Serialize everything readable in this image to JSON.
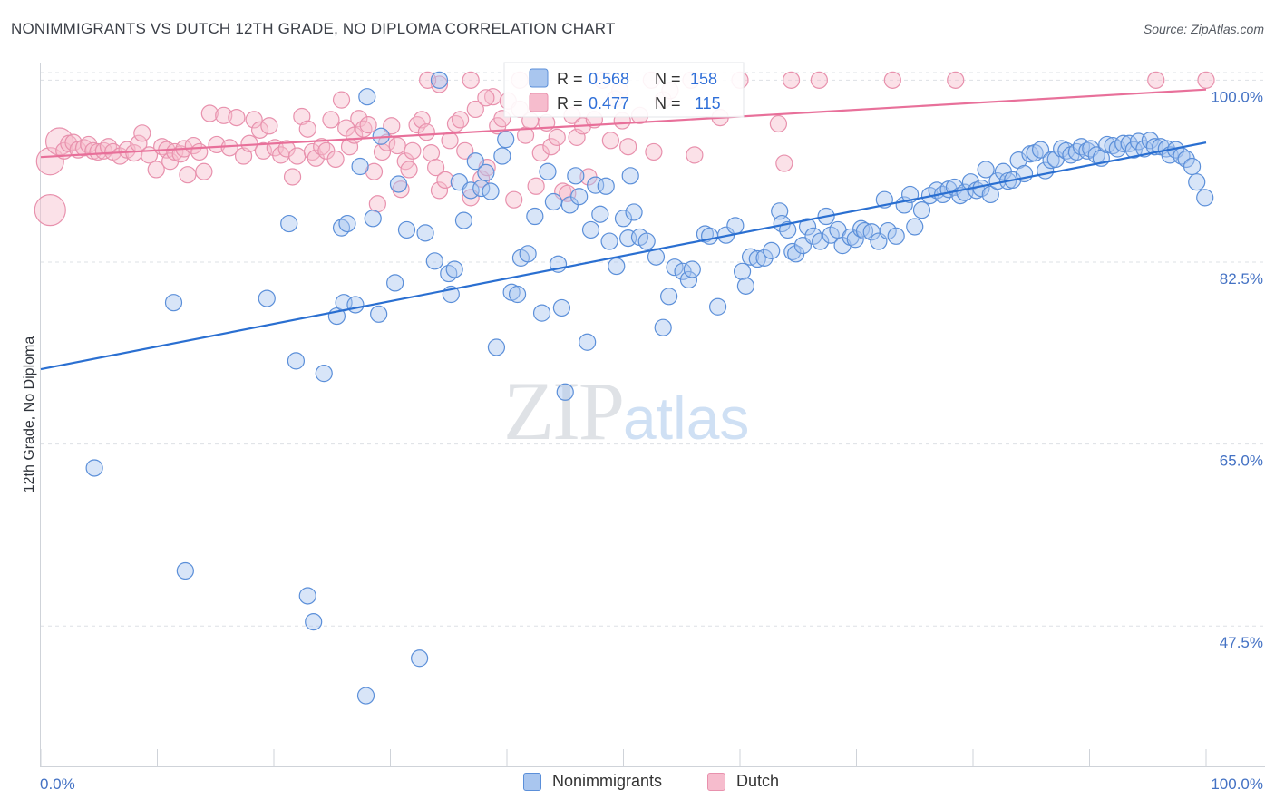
{
  "header": {
    "title": "NONIMMIGRANTS VS DUTCH 12TH GRADE, NO DIPLOMA CORRELATION CHART",
    "source": "Source: ZipAtlas.com"
  },
  "watermark": {
    "zip": "ZIP",
    "atlas": "atlas"
  },
  "colors": {
    "blue": "#5b8fd9",
    "blue_fill": "#a9c6ef",
    "blue_line": "#2a6fd1",
    "pink": "#e891ad",
    "pink_fill": "#f6bccd",
    "pink_line": "#e8709a",
    "tick_text": "#4472c4",
    "grid": "#dde0e5"
  },
  "legend": {
    "rows": [
      {
        "r_label": "R = ",
        "r_value": "0.568",
        "n_label": "N = ",
        "n_value": "158"
      },
      {
        "r_label": "R = ",
        "r_value": "0.477",
        "n_label": "N = ",
        "n_value": "115"
      }
    ]
  },
  "bottom_legend": {
    "items": [
      "Nonimmigrants",
      "Dutch"
    ]
  },
  "chart_data": {
    "type": "scatter",
    "title": "NONIMMIGRANTS VS DUTCH 12TH GRADE, NO DIPLOMA CORRELATION CHART",
    "xlabel": "",
    "ylabel": "12th Grade, No Diploma",
    "xlim": [
      0,
      100
    ],
    "ylim": [
      34,
      101.6
    ],
    "x_tick_labels": [
      "0.0%",
      "100.0%"
    ],
    "y_ticks": [
      100.0,
      82.5,
      65.0,
      47.5
    ],
    "y_tick_labels": [
      "100.0%",
      "82.5%",
      "65.0%",
      "47.5%"
    ],
    "grid": true,
    "legend_placement": "top-center",
    "series": [
      {
        "name": "Nonimmigrants",
        "color": "#5b8fd9",
        "r": 0.568,
        "n": 158,
        "trend": [
          [
            0,
            72.2
          ],
          [
            100,
            94.0
          ]
        ],
        "points": [
          [
            4.6,
            62.7
          ],
          [
            11.4,
            78.6
          ],
          [
            12.4,
            52.8
          ],
          [
            19.4,
            79.0
          ],
          [
            21.3,
            86.2
          ],
          [
            21.9,
            73.0
          ],
          [
            22.9,
            50.4
          ],
          [
            23.4,
            47.9
          ],
          [
            24.3,
            71.8
          ],
          [
            25.4,
            77.3
          ],
          [
            25.8,
            85.8
          ],
          [
            26.0,
            78.6
          ],
          [
            26.3,
            86.2
          ],
          [
            27.0,
            78.4
          ],
          [
            27.4,
            91.7
          ],
          [
            28.0,
            98.4
          ],
          [
            28.5,
            86.7
          ],
          [
            29.0,
            77.5
          ],
          [
            29.2,
            94.6
          ],
          [
            30.4,
            80.5
          ],
          [
            30.7,
            90.0
          ],
          [
            31.4,
            85.6
          ],
          [
            32.5,
            44.4
          ],
          [
            33.0,
            85.3
          ],
          [
            33.8,
            82.6
          ],
          [
            34.2,
            100.0
          ],
          [
            35.0,
            81.4
          ],
          [
            35.2,
            79.4
          ],
          [
            35.5,
            81.8
          ],
          [
            35.9,
            90.2
          ],
          [
            36.3,
            86.5
          ],
          [
            36.9,
            89.4
          ],
          [
            37.3,
            92.2
          ],
          [
            37.8,
            89.6
          ],
          [
            38.2,
            91.1
          ],
          [
            38.6,
            89.3
          ],
          [
            39.1,
            74.3
          ],
          [
            39.6,
            92.7
          ],
          [
            39.9,
            94.3
          ],
          [
            40.4,
            79.6
          ],
          [
            40.9,
            79.4
          ],
          [
            41.2,
            82.9
          ],
          [
            41.8,
            83.3
          ],
          [
            42.4,
            86.9
          ],
          [
            43.0,
            77.6
          ],
          [
            43.5,
            91.2
          ],
          [
            44.0,
            88.3
          ],
          [
            44.4,
            82.3
          ],
          [
            44.7,
            78.1
          ],
          [
            45.0,
            70.0
          ],
          [
            45.4,
            88.0
          ],
          [
            45.9,
            90.8
          ],
          [
            46.2,
            88.8
          ],
          [
            46.9,
            74.8
          ],
          [
            47.2,
            85.6
          ],
          [
            47.6,
            89.9
          ],
          [
            48.0,
            87.1
          ],
          [
            48.5,
            89.8
          ],
          [
            48.8,
            84.5
          ],
          [
            49.4,
            82.1
          ],
          [
            50.0,
            86.7
          ],
          [
            50.4,
            84.8
          ],
          [
            50.6,
            90.8
          ],
          [
            50.9,
            87.3
          ],
          [
            51.4,
            84.9
          ],
          [
            52.0,
            84.5
          ],
          [
            52.8,
            83.0
          ],
          [
            53.4,
            76.2
          ],
          [
            53.9,
            79.2
          ],
          [
            54.4,
            82.0
          ],
          [
            55.1,
            81.6
          ],
          [
            55.6,
            80.8
          ],
          [
            55.9,
            81.8
          ],
          [
            57.0,
            85.2
          ],
          [
            57.4,
            85.0
          ],
          [
            58.1,
            78.2
          ],
          [
            58.8,
            85.1
          ],
          [
            59.6,
            86.0
          ],
          [
            60.2,
            81.6
          ],
          [
            60.5,
            80.2
          ],
          [
            60.9,
            83.0
          ],
          [
            61.5,
            82.8
          ],
          [
            62.1,
            82.9
          ],
          [
            62.7,
            83.6
          ],
          [
            63.4,
            87.4
          ],
          [
            63.6,
            86.2
          ],
          [
            64.1,
            85.6
          ],
          [
            64.5,
            83.5
          ],
          [
            64.8,
            83.3
          ],
          [
            65.4,
            84.1
          ],
          [
            65.8,
            85.9
          ],
          [
            66.3,
            85.0
          ],
          [
            66.9,
            84.5
          ],
          [
            67.4,
            86.9
          ],
          [
            67.8,
            85.1
          ],
          [
            68.4,
            85.6
          ],
          [
            68.8,
            84.1
          ],
          [
            69.5,
            84.9
          ],
          [
            69.9,
            84.7
          ],
          [
            70.4,
            85.7
          ],
          [
            70.7,
            85.5
          ],
          [
            71.3,
            85.4
          ],
          [
            71.9,
            84.5
          ],
          [
            72.4,
            88.5
          ],
          [
            72.7,
            85.5
          ],
          [
            73.4,
            85.0
          ],
          [
            74.1,
            88.0
          ],
          [
            74.6,
            89.0
          ],
          [
            75.0,
            85.9
          ],
          [
            75.6,
            87.5
          ],
          [
            76.3,
            88.9
          ],
          [
            76.9,
            89.4
          ],
          [
            77.4,
            89.0
          ],
          [
            77.9,
            89.5
          ],
          [
            78.4,
            89.7
          ],
          [
            78.9,
            88.9
          ],
          [
            79.3,
            89.2
          ],
          [
            79.8,
            90.2
          ],
          [
            80.3,
            89.4
          ],
          [
            80.7,
            89.6
          ],
          [
            81.1,
            91.4
          ],
          [
            81.5,
            89.0
          ],
          [
            82.1,
            90.3
          ],
          [
            82.6,
            91.2
          ],
          [
            83.0,
            90.3
          ],
          [
            83.4,
            90.4
          ],
          [
            83.9,
            92.3
          ],
          [
            84.4,
            91.0
          ],
          [
            84.9,
            92.9
          ],
          [
            85.3,
            93.0
          ],
          [
            85.8,
            93.3
          ],
          [
            86.2,
            91.3
          ],
          [
            86.7,
            92.3
          ],
          [
            87.1,
            92.4
          ],
          [
            87.6,
            93.4
          ],
          [
            88.0,
            93.2
          ],
          [
            88.4,
            92.8
          ],
          [
            88.9,
            93.1
          ],
          [
            89.3,
            93.6
          ],
          [
            89.8,
            93.2
          ],
          [
            90.1,
            93.4
          ],
          [
            90.6,
            92.8
          ],
          [
            91.0,
            92.5
          ],
          [
            91.5,
            93.8
          ],
          [
            92.0,
            93.7
          ],
          [
            92.4,
            93.4
          ],
          [
            92.9,
            93.9
          ],
          [
            93.4,
            93.9
          ],
          [
            93.8,
            93.3
          ],
          [
            94.2,
            94.1
          ],
          [
            94.7,
            93.4
          ],
          [
            95.2,
            94.2
          ],
          [
            95.6,
            93.6
          ],
          [
            96.1,
            93.6
          ],
          [
            96.6,
            93.4
          ],
          [
            96.9,
            92.8
          ],
          [
            97.4,
            93.3
          ],
          [
            97.9,
            92.7
          ],
          [
            98.3,
            92.4
          ],
          [
            98.8,
            91.7
          ],
          [
            99.2,
            90.2
          ],
          [
            99.9,
            88.7
          ],
          [
            27.9,
            40.8
          ]
        ]
      },
      {
        "name": "Dutch",
        "color": "#e891ad",
        "r": 0.477,
        "n": 115,
        "trend": [
          [
            0,
            92.6
          ],
          [
            100,
            99.1
          ]
        ],
        "points": [
          [
            0.8,
            87.5
          ],
          [
            0.8,
            92.2
          ],
          [
            1.6,
            94.1
          ],
          [
            2.0,
            93.2
          ],
          [
            2.4,
            93.9
          ],
          [
            2.8,
            94.0
          ],
          [
            3.2,
            93.3
          ],
          [
            3.7,
            93.5
          ],
          [
            4.1,
            93.8
          ],
          [
            4.5,
            93.2
          ],
          [
            4.9,
            93.1
          ],
          [
            5.4,
            93.2
          ],
          [
            5.8,
            93.6
          ],
          [
            6.2,
            93.1
          ],
          [
            6.8,
            92.7
          ],
          [
            7.4,
            93.3
          ],
          [
            8.0,
            93.0
          ],
          [
            8.4,
            93.9
          ],
          [
            8.7,
            94.9
          ],
          [
            9.3,
            92.8
          ],
          [
            9.9,
            91.4
          ],
          [
            10.4,
            93.6
          ],
          [
            10.8,
            93.3
          ],
          [
            11.1,
            92.2
          ],
          [
            11.5,
            93.1
          ],
          [
            12.0,
            92.9
          ],
          [
            12.3,
            93.4
          ],
          [
            12.6,
            90.9
          ],
          [
            13.1,
            93.7
          ],
          [
            13.6,
            93.1
          ],
          [
            14.0,
            91.2
          ],
          [
            14.5,
            96.8
          ],
          [
            15.1,
            93.8
          ],
          [
            15.7,
            96.6
          ],
          [
            16.2,
            93.5
          ],
          [
            16.8,
            96.4
          ],
          [
            17.4,
            92.7
          ],
          [
            17.9,
            93.9
          ],
          [
            18.3,
            96.2
          ],
          [
            18.8,
            95.2
          ],
          [
            19.1,
            93.2
          ],
          [
            19.6,
            95.6
          ],
          [
            20.1,
            93.5
          ],
          [
            20.6,
            92.8
          ],
          [
            21.1,
            93.4
          ],
          [
            21.6,
            90.7
          ],
          [
            22.0,
            92.7
          ],
          [
            22.4,
            96.5
          ],
          [
            22.9,
            95.3
          ],
          [
            23.3,
            93.1
          ],
          [
            23.6,
            92.5
          ],
          [
            24.1,
            93.6
          ],
          [
            24.5,
            93.2
          ],
          [
            24.9,
            96.2
          ],
          [
            25.3,
            92.4
          ],
          [
            25.8,
            98.1
          ],
          [
            26.2,
            95.4
          ],
          [
            26.5,
            93.6
          ],
          [
            26.9,
            94.7
          ],
          [
            27.3,
            96.3
          ],
          [
            27.7,
            95.3
          ],
          [
            28.1,
            95.7
          ],
          [
            28.6,
            91.2
          ],
          [
            28.9,
            88.1
          ],
          [
            29.3,
            93.1
          ],
          [
            29.7,
            94.0
          ],
          [
            30.1,
            95.6
          ],
          [
            30.6,
            93.7
          ],
          [
            30.9,
            89.5
          ],
          [
            31.3,
            92.2
          ],
          [
            31.6,
            91.4
          ],
          [
            31.9,
            93.2
          ],
          [
            32.3,
            95.7
          ],
          [
            32.7,
            96.2
          ],
          [
            33.1,
            95.0
          ],
          [
            33.5,
            93.0
          ],
          [
            33.9,
            91.6
          ],
          [
            34.2,
            89.4
          ],
          [
            34.7,
            90.4
          ],
          [
            35.1,
            94.2
          ],
          [
            35.6,
            95.8
          ],
          [
            36.0,
            96.2
          ],
          [
            36.4,
            93.2
          ],
          [
            36.9,
            88.7
          ],
          [
            37.3,
            97.2
          ],
          [
            37.8,
            90.5
          ],
          [
            38.3,
            91.6
          ],
          [
            38.8,
            98.4
          ],
          [
            39.2,
            95.6
          ],
          [
            39.6,
            96.3
          ],
          [
            40.1,
            98.0
          ],
          [
            40.6,
            88.5
          ],
          [
            41.1,
            97.2
          ],
          [
            41.6,
            94.7
          ],
          [
            42.0,
            96.1
          ],
          [
            42.5,
            89.8
          ],
          [
            42.9,
            93.0
          ],
          [
            43.4,
            95.9
          ],
          [
            43.8,
            93.6
          ],
          [
            44.3,
            94.5
          ],
          [
            44.8,
            89.3
          ],
          [
            45.2,
            89.1
          ],
          [
            45.6,
            96.6
          ],
          [
            46.0,
            94.5
          ],
          [
            46.5,
            95.6
          ],
          [
            47.0,
            90.7
          ],
          [
            47.5,
            96.2
          ],
          [
            48.2,
            100.0
          ],
          [
            48.9,
            94.2
          ],
          [
            49.3,
            98.2
          ],
          [
            49.7,
            99.0
          ],
          [
            50.4,
            93.6
          ],
          [
            51.4,
            96.6
          ],
          [
            52.6,
            93.1
          ],
          [
            53.4,
            98.1
          ],
          [
            54.0,
            99.0
          ],
          [
            56.1,
            92.8
          ],
          [
            58.3,
            96.4
          ],
          [
            60.0,
            100.0
          ],
          [
            63.3,
            95.8
          ],
          [
            63.8,
            92.0
          ],
          [
            64.4,
            100.0
          ],
          [
            66.8,
            100.0
          ],
          [
            73.1,
            100.0
          ],
          [
            78.5,
            100.0
          ],
          [
            95.7,
            100.0
          ],
          [
            100.0,
            100.0
          ],
          [
            55.8,
            100.0
          ],
          [
            52.4,
            100.0
          ],
          [
            49.9,
            96.1
          ],
          [
            38.2,
            98.3
          ],
          [
            36.9,
            100.0
          ],
          [
            41.1,
            100.0
          ],
          [
            34.2,
            99.6
          ],
          [
            33.2,
            100.0
          ]
        ]
      }
    ]
  }
}
